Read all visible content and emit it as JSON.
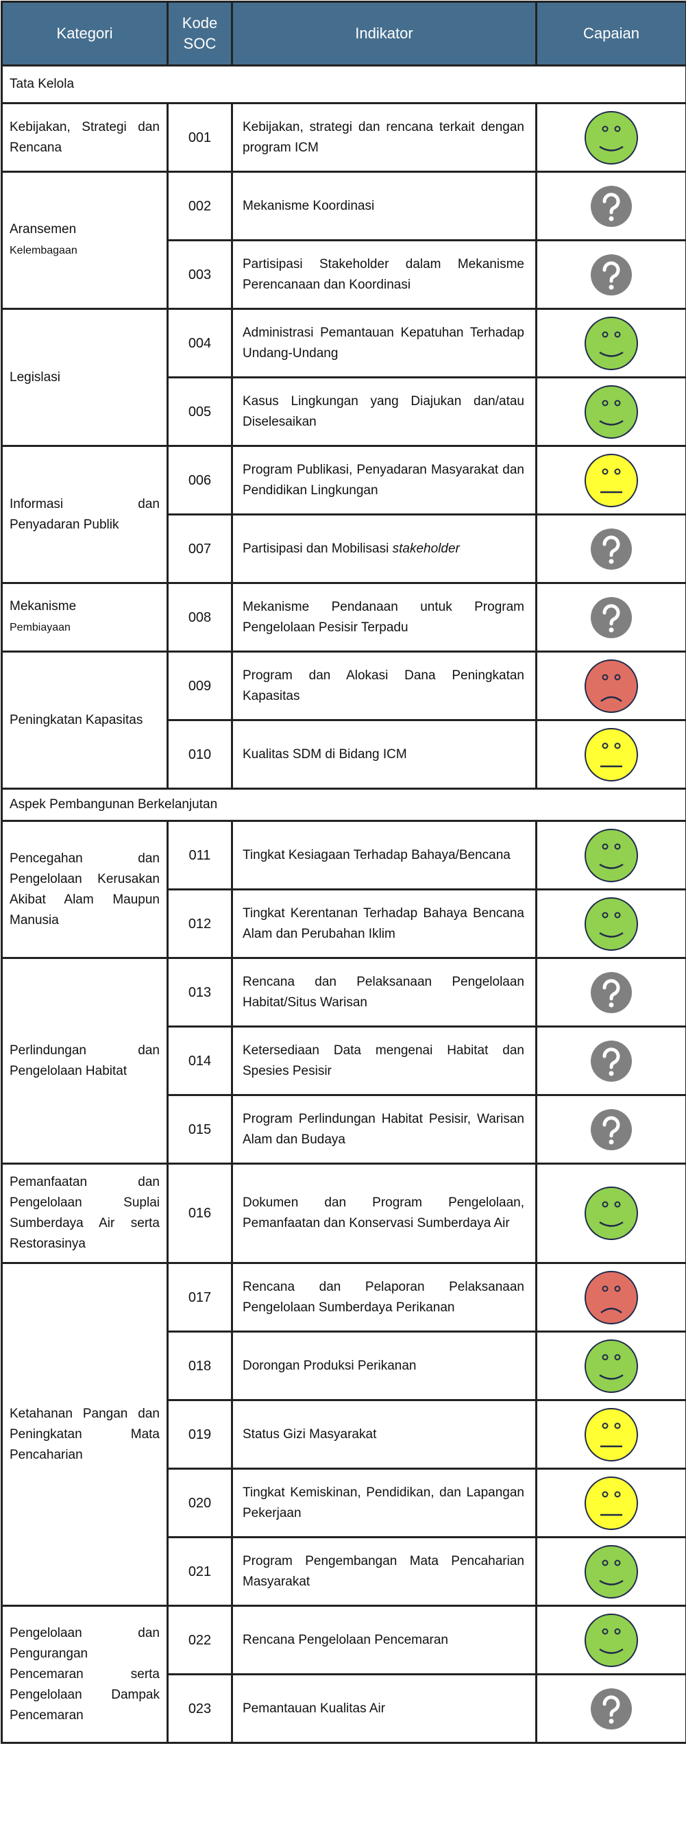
{
  "header": {
    "kategori": "Kategori",
    "kode": "Kode SOC",
    "indikator": "Indikator",
    "capaian": "Capaian"
  },
  "colors": {
    "header_bg": "#456e8e",
    "good": "#92d050",
    "neutral": "#ffff33",
    "bad": "#e06f63",
    "unknown": "#808080"
  },
  "sections": [
    {
      "title": "Tata Kelola",
      "categories": [
        {
          "label": "Kebijakan, Strategi dan Rencana",
          "rows": [
            {
              "code": "001",
              "indicator": "Kebijakan, strategi dan rencana terkait dengan program ICM",
              "status": "good"
            }
          ]
        },
        {
          "label": "Aransemen",
          "label_small": "Kelembagaan",
          "rows": [
            {
              "code": "002",
              "indicator": "Mekanisme Koordinasi",
              "status": "unknown"
            },
            {
              "code": "003",
              "indicator": "Partisipasi Stakeholder dalam Mekanisme Perencanaan dan Koordinasi",
              "status": "unknown"
            }
          ]
        },
        {
          "label": "Legislasi",
          "rows": [
            {
              "code": "004",
              "indicator": "Administrasi Pemantauan Kepatuhan Terhadap Undang-Undang",
              "status": "good"
            },
            {
              "code": "005",
              "indicator": "Kasus Lingkungan yang Diajukan dan/atau Diselesaikan",
              "status": "good"
            }
          ]
        },
        {
          "label": "Informasi dan Penyadaran Publik",
          "rows": [
            {
              "code": "006",
              "indicator": "Program Publikasi, Penyadaran Masyarakat dan Pendidikan Lingkungan",
              "status": "neutral"
            },
            {
              "code": "007",
              "indicator": "Partisipasi dan Mobilisasi",
              "indicator_italic": "stakeholder",
              "status": "unknown"
            }
          ]
        },
        {
          "label": "Mekanisme",
          "label_small": "Pembiayaan",
          "rows": [
            {
              "code": "008",
              "indicator": "Mekanisme Pendanaan untuk Program Pengelolaan Pesisir Terpadu",
              "status": "unknown"
            }
          ]
        },
        {
          "label": "Peningkatan Kapasitas",
          "rows": [
            {
              "code": "009",
              "indicator": "Program dan Alokasi Dana Peningkatan Kapasitas",
              "status": "bad"
            },
            {
              "code": "010",
              "indicator": "Kualitas SDM di Bidang ICM",
              "status": "neutral"
            }
          ]
        }
      ]
    },
    {
      "title": "Aspek Pembangunan Berkelanjutan",
      "categories": [
        {
          "label": "Pencegahan dan Pengelolaan Kerusakan Akibat Alam Maupun Manusia",
          "rows": [
            {
              "code": "011",
              "indicator": "Tingkat Kesiagaan Terhadap Bahaya/Bencana",
              "status": "good"
            },
            {
              "code": "012",
              "indicator": "Tingkat Kerentanan Terhadap Bahaya Bencana Alam dan Perubahan Iklim",
              "status": "good"
            }
          ]
        },
        {
          "label": "Perlindungan dan Pengelolaan Habitat",
          "rows": [
            {
              "code": "013",
              "indicator": "Rencana dan Pelaksanaan Pengelolaan Habitat/Situs Warisan",
              "status": "unknown"
            },
            {
              "code": "014",
              "indicator": "Ketersediaan Data mengenai Habitat dan Spesies Pesisir",
              "status": "unknown"
            },
            {
              "code": "015",
              "indicator": "Program Perlindungan Habitat Pesisir, Warisan Alam dan Budaya",
              "status": "unknown"
            }
          ]
        },
        {
          "label": "Pemanfaatan dan Pengelolaan Suplai Sumberdaya Air serta Restorasinya",
          "tall": true,
          "rows": [
            {
              "code": "016",
              "indicator": "Dokumen dan Program Pengelolaan, Pemanfaatan dan Konservasi Sumberdaya Air",
              "status": "good"
            }
          ]
        },
        {
          "label": "Ketahanan Pangan dan Peningkatan Mata Pencaharian",
          "rows": [
            {
              "code": "017",
              "indicator": "Rencana dan Pelaporan Pelaksanaan Pengelolaan Sumberdaya Perikanan",
              "status": "bad"
            },
            {
              "code": "018",
              "indicator": "Dorongan Produksi Perikanan",
              "status": "good"
            },
            {
              "code": "019",
              "indicator": "Status Gizi Masyarakat",
              "status": "neutral"
            },
            {
              "code": "020",
              "indicator": "Tingkat Kemiskinan, Pendidikan, dan Lapangan Pekerjaan",
              "status": "neutral"
            },
            {
              "code": "021",
              "indicator": "Program Pengembangan Mata Pencaharian Masyarakat",
              "status": "good"
            }
          ]
        },
        {
          "label": "Pengelolaan dan Pengurangan Pencemaran serta Pengelolaan Dampak Pencemaran",
          "rows": [
            {
              "code": "022",
              "indicator": "Rencana Pengelolaan Pencemaran",
              "status": "good"
            },
            {
              "code": "023",
              "indicator": "Pemantauan Kualitas Air",
              "status": "unknown"
            }
          ]
        }
      ]
    }
  ]
}
